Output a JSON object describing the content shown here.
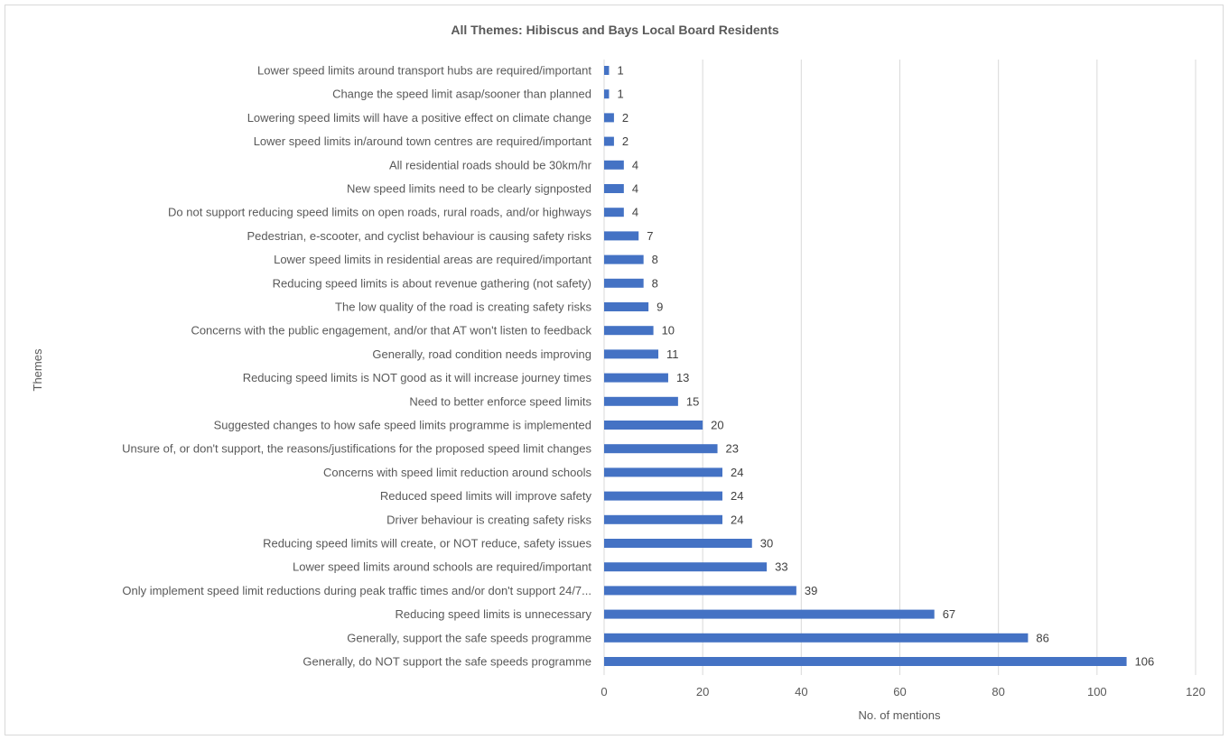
{
  "chart_data": {
    "type": "bar",
    "orientation": "horizontal",
    "title": "All Themes: Hibiscus and Bays Local Board Residents",
    "xlabel": "No. of mentions",
    "ylabel": "Themes",
    "xlim": [
      0,
      120
    ],
    "xticks": [
      0,
      20,
      40,
      60,
      80,
      100,
      120
    ],
    "grid": true,
    "legend": "none",
    "bar_color": "#4472c4",
    "categories": [
      "Lower speed limits around transport hubs are required/important",
      "Change the speed limit asap/sooner than planned",
      "Lowering speed limits will have a positive effect on climate change",
      "Lower speed limits in/around town centres are required/important",
      "All residential roads should be 30km/hr",
      "New speed limits need to be clearly signposted",
      "Do not support reducing speed limits on open roads, rural roads, and/or highways",
      "Pedestrian, e-scooter, and cyclist behaviour is causing safety risks",
      "Lower speed limits in residential areas are required/important",
      "Reducing speed limits is about revenue gathering (not safety)",
      "The low quality of the road is creating safety risks",
      "Concerns with the public engagement, and/or that AT won't listen to feedback",
      "Generally, road condition needs improving",
      "Reducing speed limits is NOT good as it will increase journey times",
      "Need to better enforce speed limits",
      "Suggested changes to how safe speed limits programme is implemented",
      "Unsure of, or don't support, the reasons/justifications for the proposed speed limit changes",
      "Concerns with speed limit reduction around schools",
      "Reduced speed limits will improve safety",
      "Driver behaviour is creating safety risks",
      "Reducing speed limits will create, or NOT reduce, safety issues",
      "Lower speed limits around schools are required/important",
      "Only implement speed limit reductions during peak traffic times and/or don't support 24/7...",
      "Reducing speed limits is unnecessary",
      "Generally, support the safe speeds programme",
      "Generally, do NOT support the safe speeds programme"
    ],
    "values": [
      1,
      1,
      2,
      2,
      4,
      4,
      4,
      7,
      8,
      8,
      9,
      10,
      11,
      13,
      15,
      20,
      23,
      24,
      24,
      24,
      30,
      33,
      39,
      67,
      86,
      106
    ]
  }
}
